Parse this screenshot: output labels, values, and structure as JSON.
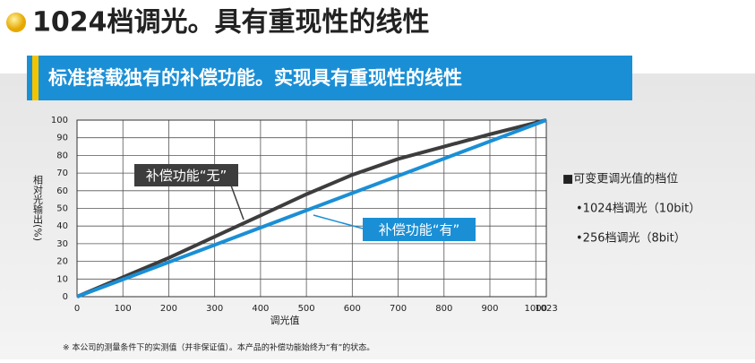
{
  "header": {
    "title": "1024档调光。具有重现性的线性",
    "banner": "标准搭载独有的补偿功能。实现具有重现性的线性"
  },
  "chart_data": {
    "type": "line",
    "x_label": "调光值",
    "y_label": "相对光输出(%)",
    "xlim": [
      0,
      1023
    ],
    "ylim": [
      0,
      100
    ],
    "xticks": [
      0,
      100,
      200,
      300,
      400,
      500,
      600,
      700,
      800,
      900,
      1000,
      1023
    ],
    "yticks": [
      0,
      10,
      20,
      30,
      40,
      50,
      60,
      70,
      80,
      90,
      100
    ],
    "grid": true,
    "series": [
      {
        "name": "补偿功能“无”",
        "color": "#3d3d3d",
        "x": [
          0,
          100,
          200,
          300,
          400,
          500,
          600,
          700,
          800,
          900,
          1023
        ],
        "values": [
          0,
          11,
          22,
          34,
          46,
          58,
          69,
          78,
          85,
          92,
          100
        ]
      },
      {
        "name": "补偿功能“有”",
        "color": "#1a8fd6",
        "x": [
          0,
          1023
        ],
        "values": [
          0,
          100
        ]
      }
    ]
  },
  "notes": {
    "heading": "■可变更调光值的档位",
    "items": [
      "•1024档调光（10bit）",
      "•256档调光（8bit）"
    ]
  },
  "footnote": "※ 本公司的测量条件下的实测值（并非保证值）。本产品的补偿功能始终为“有”的状态。"
}
